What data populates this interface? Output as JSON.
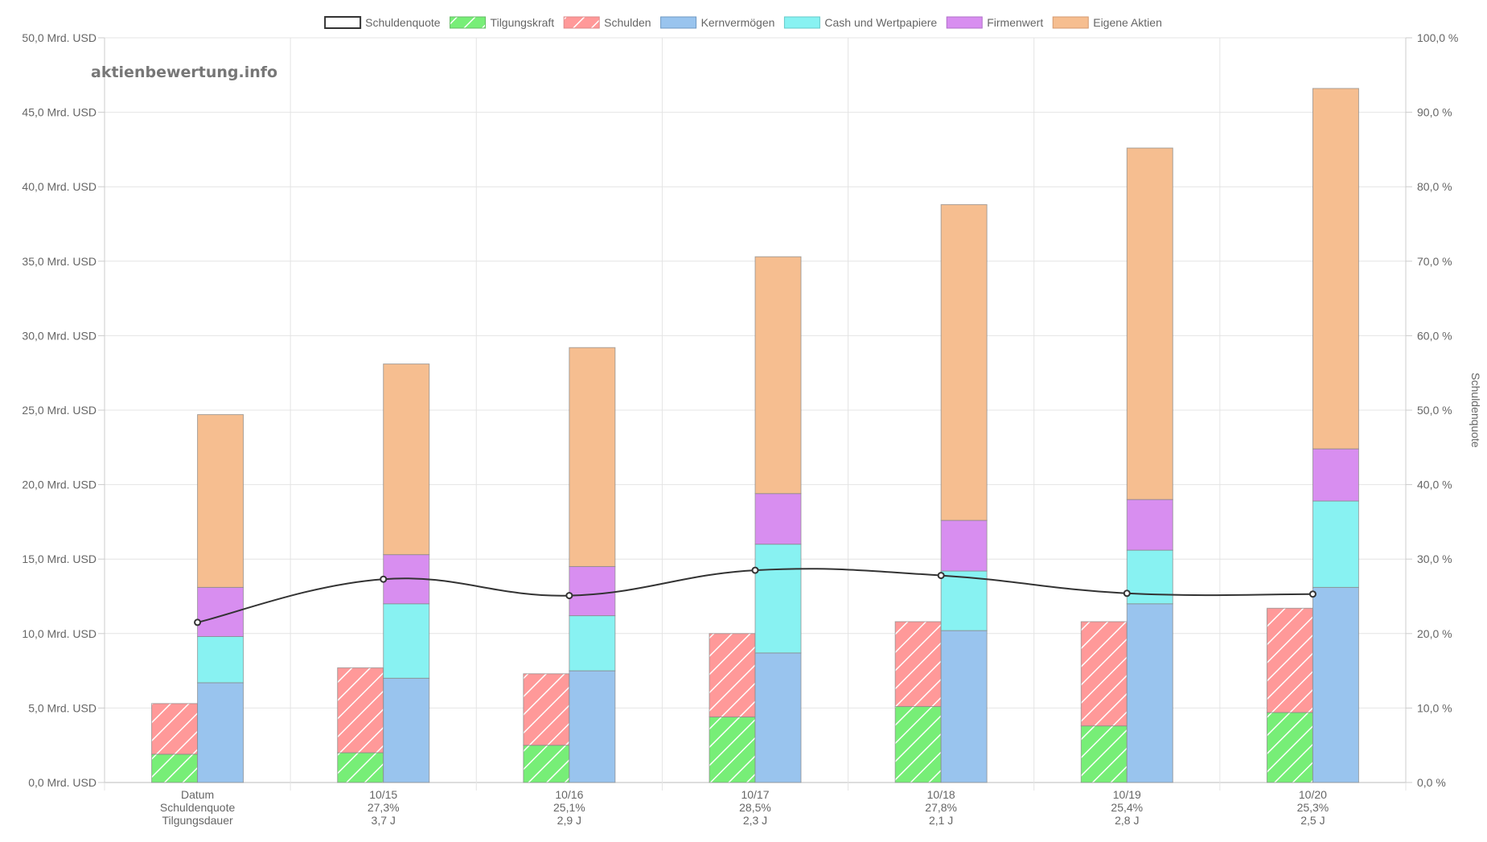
{
  "watermark": "aktienbewertung.info",
  "chart_data": {
    "type": "bar",
    "categories": [
      "Datum",
      "10/15",
      "10/16",
      "10/17",
      "10/18",
      "10/19",
      "10/20"
    ],
    "category_lines": [
      [
        "Datum",
        "Schuldenquote",
        "Tilgungsdauer"
      ],
      [
        "10/15",
        "27,3%",
        "3,7 J"
      ],
      [
        "10/16",
        "25,1%",
        "2,9 J"
      ],
      [
        "10/17",
        "28,5%",
        "2,3 J"
      ],
      [
        "10/18",
        "27,8%",
        "2,1 J"
      ],
      [
        "10/19",
        "25,4%",
        "2,8 J"
      ],
      [
        "10/20",
        "25,3%",
        "2,5 J"
      ]
    ],
    "y_left": {
      "min": 0,
      "max": 50,
      "step": 5,
      "tick_labels": [
        "0,0 Mrd. USD",
        "5,0 Mrd. USD",
        "10,0 Mrd. USD",
        "15,0 Mrd. USD",
        "20,0 Mrd. USD",
        "25,0 Mrd. USD",
        "30,0 Mrd. USD",
        "35,0 Mrd. USD",
        "40,0 Mrd. USD",
        "45,0 Mrd. USD",
        "50,0 Mrd. USD"
      ]
    },
    "y_right": {
      "min": 0,
      "max": 100,
      "step": 10,
      "label": "Schuldenquote",
      "tick_labels": [
        "0,0 %",
        "10,0 %",
        "20,0 %",
        "30,0 %",
        "40,0 %",
        "50,0 %",
        "60,0 %",
        "70,0 %",
        "80,0 %",
        "90,0 %",
        "100,0 %"
      ]
    },
    "grid": true,
    "legend_position": "top",
    "legend": [
      {
        "name": "Schuldenquote",
        "color": "#ffffff",
        "border": "#333333",
        "pattern": "none"
      },
      {
        "name": "Tilgungskraft",
        "color": "#77ee77",
        "border": "#66bb66",
        "pattern": "hatch"
      },
      {
        "name": "Schulden",
        "color": "#ff9999",
        "border": "#dd8888",
        "pattern": "hatch"
      },
      {
        "name": "Kernvermögen",
        "color": "#99c4ee",
        "border": "#6f99c3",
        "pattern": "none"
      },
      {
        "name": "Cash und Wertpapiere",
        "color": "#88f2f2",
        "border": "#66c9c9",
        "pattern": "none"
      },
      {
        "name": "Firmenwert",
        "color": "#d88ef0",
        "border": "#b070c8",
        "pattern": "none"
      },
      {
        "name": "Eigene Aktien",
        "color": "#f6be90",
        "border": "#d49a70",
        "pattern": "none"
      }
    ],
    "stack_left": [
      {
        "name": "Tilgungskraft",
        "values": [
          1.9,
          2.0,
          2.5,
          4.4,
          5.1,
          3.8,
          4.7
        ]
      },
      {
        "name": "Schulden",
        "values": [
          3.4,
          5.7,
          4.8,
          5.6,
          5.7,
          7.0,
          7.0
        ]
      }
    ],
    "stack_right": [
      {
        "name": "Kernvermögen",
        "values": [
          6.7,
          7.0,
          7.5,
          8.7,
          10.2,
          12.0,
          13.1
        ]
      },
      {
        "name": "Cash und Wertpapiere",
        "values": [
          3.1,
          5.0,
          3.7,
          7.3,
          4.0,
          3.6,
          5.8
        ]
      },
      {
        "name": "Firmenwert",
        "values": [
          3.3,
          3.3,
          3.3,
          3.4,
          3.4,
          3.4,
          3.5
        ]
      },
      {
        "name": "Eigene Aktien",
        "values": [
          11.6,
          12.8,
          14.7,
          15.9,
          21.2,
          23.6,
          24.2
        ]
      }
    ],
    "line": {
      "name": "Schuldenquote",
      "axis": "right",
      "values": [
        21.5,
        27.3,
        25.1,
        28.5,
        27.8,
        25.4,
        25.3
      ]
    }
  }
}
